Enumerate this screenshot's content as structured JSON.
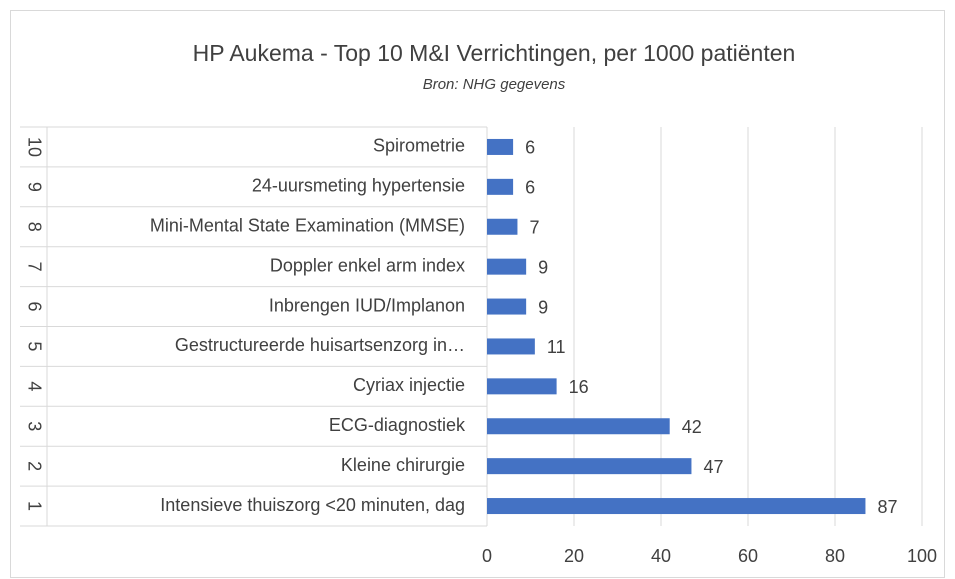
{
  "chart_data": {
    "type": "bar",
    "orientation": "horizontal",
    "title": "HP Aukema - Top 10 M&I Verrichtingen, per 1000 patiënten",
    "subtitle": "Bron: NHG gegevens",
    "ranks": [
      "1",
      "2",
      "3",
      "4",
      "5",
      "6",
      "7",
      "8",
      "9",
      "10"
    ],
    "categories": [
      "Intensieve thuiszorg <20 minuten, dag",
      "Kleine chirurgie",
      "ECG-diagnostiek",
      "Cyriax injectie",
      "Gestructureerde huisartsenzorg in…",
      "Inbrengen IUD/Implanon",
      "Doppler enkel arm index",
      "Mini-Mental State Examination (MMSE)",
      "24-uursmeting hypertensie",
      "Spirometrie"
    ],
    "values": [
      87,
      47,
      42,
      16,
      11,
      9,
      9,
      7,
      6,
      6
    ],
    "color": "#4472c4",
    "xlim": [
      0,
      100
    ],
    "xticks": [
      0,
      20,
      40,
      60,
      80,
      100
    ],
    "grid": true
  }
}
